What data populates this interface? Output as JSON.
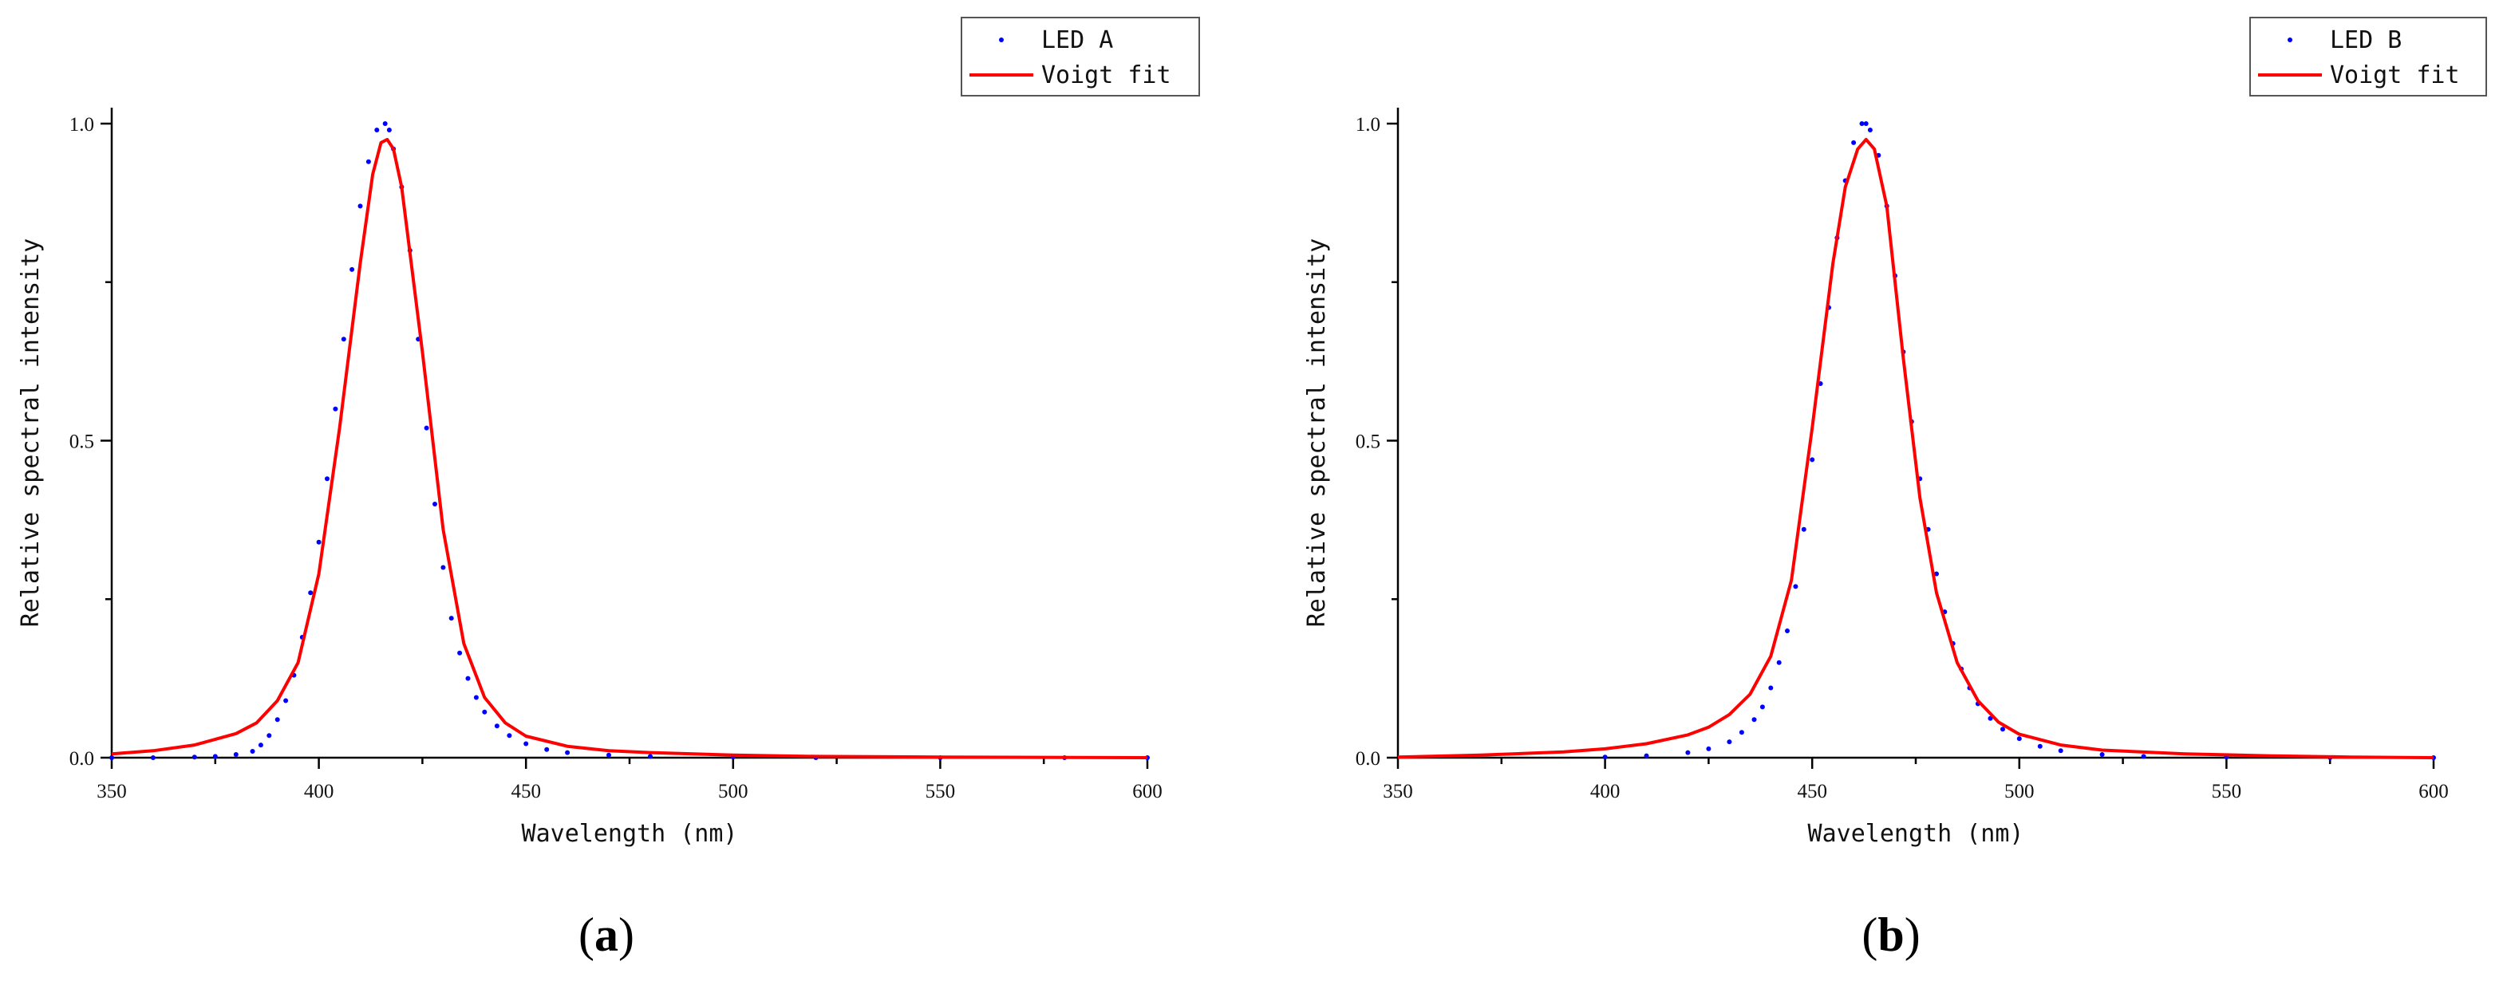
{
  "chart_data": [
    {
      "type": "scatter",
      "xlabel": "Wavelength (nm)",
      "ylabel": "Relative spectral intensity",
      "xlim": [
        350,
        600
      ],
      "ylim": [
        0,
        1.0
      ],
      "xticks": [
        350,
        400,
        450,
        500,
        550,
        600
      ],
      "xtick_labels": [
        "350",
        "400",
        "450",
        "500",
        "550",
        "600"
      ],
      "yticks": [
        0.0,
        0.5,
        1.0
      ],
      "ytick_labels": [
        "0.0",
        "0.5",
        "1.0"
      ],
      "grid": false,
      "legend_position": "top-right",
      "panel_label": "(a)",
      "panel_letter": "a",
      "series": [
        {
          "name": "LED A",
          "kind": "points",
          "color": "#0000ff",
          "x": [
            350,
            360,
            370,
            375,
            380,
            384,
            386,
            388,
            390,
            392,
            394,
            396,
            398,
            400,
            402,
            404,
            406,
            408,
            410,
            412,
            414,
            416,
            417,
            418,
            420,
            422,
            424,
            426,
            428,
            430,
            432,
            434,
            436,
            438,
            440,
            443,
            446,
            450,
            455,
            460,
            470,
            480,
            500,
            520,
            550,
            580,
            600
          ],
          "y": [
            0.0,
            0.0,
            0.001,
            0.002,
            0.005,
            0.01,
            0.02,
            0.035,
            0.06,
            0.09,
            0.13,
            0.19,
            0.26,
            0.34,
            0.44,
            0.55,
            0.66,
            0.77,
            0.87,
            0.94,
            0.99,
            1.0,
            0.99,
            0.96,
            0.9,
            0.8,
            0.66,
            0.52,
            0.4,
            0.3,
            0.22,
            0.165,
            0.125,
            0.095,
            0.072,
            0.05,
            0.035,
            0.022,
            0.013,
            0.008,
            0.004,
            0.002,
            0.001,
            0.0,
            0.0,
            0.0,
            0.0
          ]
        },
        {
          "name": "Voigt fit",
          "kind": "line",
          "color": "#ff0000",
          "x": [
            350,
            360,
            370,
            380,
            385,
            390,
            395,
            400,
            405,
            410,
            413,
            415,
            416.5,
            418,
            420,
            425,
            430,
            435,
            440,
            445,
            450,
            460,
            470,
            480,
            500,
            520,
            550,
            600
          ],
          "y": [
            0.006,
            0.011,
            0.02,
            0.038,
            0.055,
            0.09,
            0.15,
            0.29,
            0.52,
            0.78,
            0.92,
            0.97,
            0.975,
            0.96,
            0.9,
            0.64,
            0.36,
            0.18,
            0.095,
            0.055,
            0.034,
            0.018,
            0.011,
            0.008,
            0.004,
            0.002,
            0.001,
            0.0
          ]
        }
      ]
    },
    {
      "type": "scatter",
      "xlabel": "Wavelength (nm)",
      "ylabel": "Relative spectral intensity",
      "xlim": [
        350,
        600
      ],
      "ylim": [
        0,
        1.0
      ],
      "xticks": [
        350,
        400,
        450,
        500,
        550,
        600
      ],
      "xtick_labels": [
        "350",
        "400",
        "450",
        "500",
        "550",
        "600"
      ],
      "yticks": [
        0.0,
        0.5,
        1.0
      ],
      "ytick_labels": [
        "0.0",
        "0.5",
        "1.0"
      ],
      "grid": false,
      "legend_position": "top-right",
      "panel_label": "(b)",
      "panel_letter": "b",
      "series": [
        {
          "name": "LED B",
          "kind": "points",
          "color": "#0000ff",
          "x": [
            400,
            410,
            420,
            425,
            430,
            433,
            436,
            438,
            440,
            442,
            444,
            446,
            448,
            450,
            452,
            454,
            456,
            458,
            460,
            462,
            463,
            464,
            466,
            468,
            470,
            472,
            474,
            476,
            478,
            480,
            482,
            484,
            486,
            488,
            490,
            493,
            496,
            500,
            505,
            510,
            520,
            530,
            550,
            575,
            600
          ],
          "y": [
            0.001,
            0.003,
            0.008,
            0.014,
            0.025,
            0.04,
            0.06,
            0.08,
            0.11,
            0.15,
            0.2,
            0.27,
            0.36,
            0.47,
            0.59,
            0.71,
            0.82,
            0.91,
            0.97,
            1.0,
            1.0,
            0.99,
            0.95,
            0.87,
            0.76,
            0.64,
            0.53,
            0.44,
            0.36,
            0.29,
            0.23,
            0.18,
            0.14,
            0.11,
            0.085,
            0.062,
            0.045,
            0.03,
            0.018,
            0.011,
            0.005,
            0.002,
            0.001,
            0.0,
            0.0
          ]
        },
        {
          "name": "Voigt fit",
          "kind": "line",
          "color": "#ff0000",
          "x": [
            350,
            370,
            390,
            400,
            410,
            420,
            425,
            430,
            435,
            440,
            445,
            450,
            455,
            458,
            461,
            463,
            465,
            468,
            472,
            476,
            480,
            485,
            490,
            495,
            500,
            510,
            520,
            540,
            560,
            580,
            600
          ],
          "y": [
            0.001,
            0.004,
            0.009,
            0.014,
            0.022,
            0.036,
            0.048,
            0.068,
            0.1,
            0.16,
            0.28,
            0.52,
            0.78,
            0.9,
            0.96,
            0.975,
            0.96,
            0.87,
            0.63,
            0.41,
            0.26,
            0.15,
            0.09,
            0.056,
            0.037,
            0.02,
            0.012,
            0.006,
            0.003,
            0.001,
            0.0
          ]
        }
      ]
    }
  ]
}
